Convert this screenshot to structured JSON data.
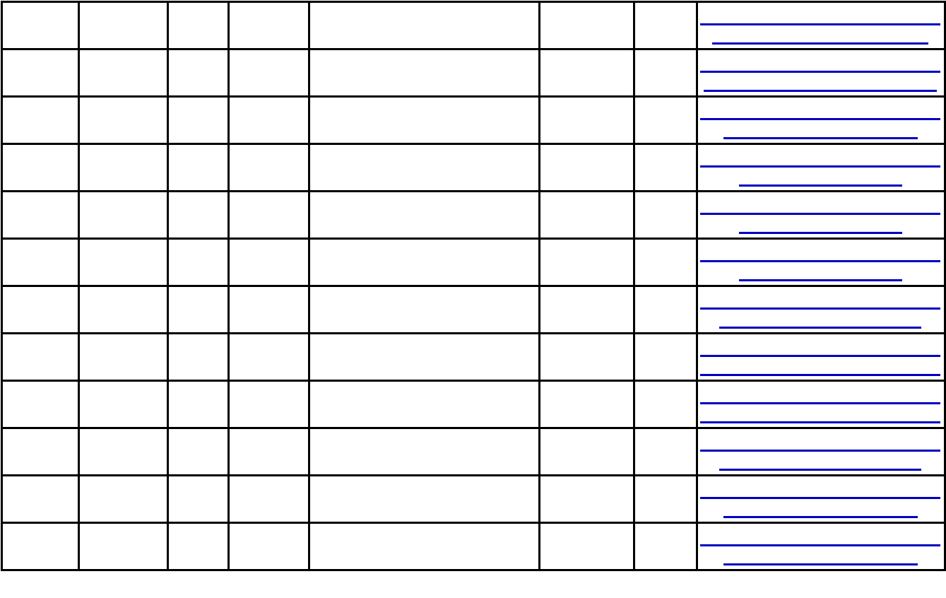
{
  "table": {
    "link_color": "#0000c0",
    "columns": [
      "",
      "",
      "",
      "",
      "",
      "",
      "",
      ""
    ],
    "rows": [
      {
        "cells": [
          "",
          "",
          "",
          "",
          "",
          "",
          ""
        ],
        "link_lines": [
          1.0,
          0.9
        ]
      },
      {
        "cells": [
          "",
          "",
          "",
          "",
          "",
          "",
          ""
        ],
        "link_lines": [
          1.0,
          0.97
        ]
      },
      {
        "cells": [
          "",
          "",
          "",
          "",
          "",
          "",
          ""
        ],
        "link_lines": [
          1.0,
          0.81
        ]
      },
      {
        "cells": [
          "",
          "",
          "",
          "",
          "",
          "",
          ""
        ],
        "link_lines": [
          1.0,
          0.68
        ]
      },
      {
        "cells": [
          "",
          "",
          "",
          "",
          "",
          "",
          ""
        ],
        "link_lines": [
          1.0,
          0.68
        ]
      },
      {
        "cells": [
          "",
          "",
          "",
          "",
          "",
          "",
          ""
        ],
        "link_lines": [
          1.0,
          0.68
        ]
      },
      {
        "cells": [
          "",
          "",
          "",
          "",
          "",
          "",
          ""
        ],
        "link_lines": [
          1.0,
          0.84
        ]
      },
      {
        "cells": [
          "",
          "",
          "",
          "",
          "",
          "",
          ""
        ],
        "link_lines": [
          1.0,
          1.0
        ]
      },
      {
        "cells": [
          "",
          "",
          "",
          "",
          "",
          "",
          ""
        ],
        "link_lines": [
          1.0,
          1.0
        ]
      },
      {
        "cells": [
          "",
          "",
          "",
          "",
          "",
          "",
          ""
        ],
        "link_lines": [
          1.0,
          0.84
        ]
      },
      {
        "cells": [
          "",
          "",
          "",
          "",
          "",
          "",
          ""
        ],
        "link_lines": [
          1.0,
          0.81
        ]
      },
      {
        "cells": [
          "",
          "",
          "",
          "",
          "",
          "",
          ""
        ],
        "link_lines": [
          1.0,
          0.81
        ]
      }
    ]
  }
}
